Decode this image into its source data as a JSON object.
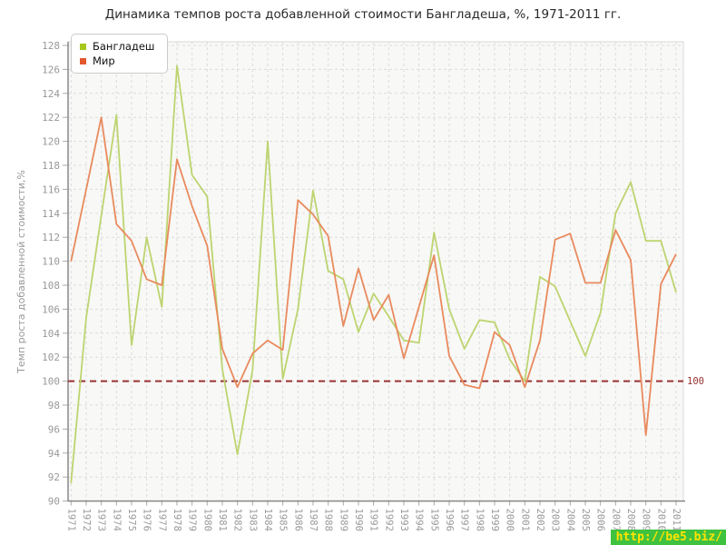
{
  "title": "Динамика темпов роста добавленной стоимости Бангладеша, %, 1971-2011 гг.",
  "y_axis_title": "Темп роста добавленной стоимости,%",
  "reference_line": {
    "value": 100,
    "label": "100"
  },
  "watermark": {
    "text": "http://be5.biz/"
  },
  "colors": {
    "bangladesh_line": "#bdd470",
    "bangladesh_swatch": "#a6c71c",
    "world_line": "#e98a5e",
    "world_swatch": "#e2572b",
    "grid": "#dcdcdc",
    "plot_bg": "#f8f8f6",
    "plot_border": "#d9d9d9",
    "axis": "#888888",
    "tick": "#aaaaaa",
    "tick_label": "#999999",
    "ref_line": "#993333",
    "watermark_bg": "#3fc23f",
    "watermark_text": "#ffe400"
  },
  "chart_data": {
    "type": "line",
    "title": "Динамика темпов роста добавленной стоимости Бангладеша, %, 1971-2011 гг.",
    "xlabel": "",
    "ylabel": "Темп роста добавленной стоимости,%",
    "ylim": [
      90,
      128
    ],
    "ytick_step": 2,
    "grid": true,
    "legend_position": "top-left",
    "reference_line_y": 100,
    "x": [
      1971,
      1972,
      1973,
      1974,
      1975,
      1976,
      1977,
      1978,
      1979,
      1980,
      1981,
      1982,
      1983,
      1984,
      1985,
      1986,
      1987,
      1988,
      1989,
      1990,
      1991,
      1992,
      1993,
      1994,
      1995,
      1996,
      1997,
      1998,
      1999,
      2000,
      2001,
      2002,
      2003,
      2004,
      2005,
      2006,
      2007,
      2008,
      2009,
      2010,
      2011
    ],
    "series": [
      {
        "name": "Бангладеш",
        "values": [
          91.5,
          105.3,
          113.8,
          122.2,
          103.0,
          112.0,
          106.2,
          126.3,
          117.2,
          115.4,
          101.0,
          93.9,
          100.9,
          120.0,
          100.2,
          106.0,
          115.9,
          109.2,
          108.5,
          104.1,
          107.3,
          105.4,
          103.4,
          103.2,
          112.4,
          106.0,
          102.7,
          105.1,
          104.9,
          101.8,
          100.0,
          108.7,
          107.9,
          105.0,
          102.1,
          105.7,
          114.0,
          116.6,
          111.7,
          111.7,
          107.4
        ]
      },
      {
        "name": "Мир",
        "values": [
          110.0,
          116.0,
          122.0,
          113.1,
          111.7,
          108.5,
          108.0,
          118.5,
          114.6,
          111.3,
          102.7,
          99.5,
          102.3,
          103.4,
          102.6,
          115.1,
          113.9,
          112.1,
          104.6,
          109.4,
          105.1,
          107.2,
          101.9,
          106.2,
          110.5,
          102.1,
          99.7,
          99.4,
          104.1,
          103.0,
          99.5,
          103.4,
          111.8,
          112.3,
          108.2,
          108.2,
          112.6,
          110.1,
          95.5,
          108.1,
          110.6
        ]
      }
    ]
  }
}
